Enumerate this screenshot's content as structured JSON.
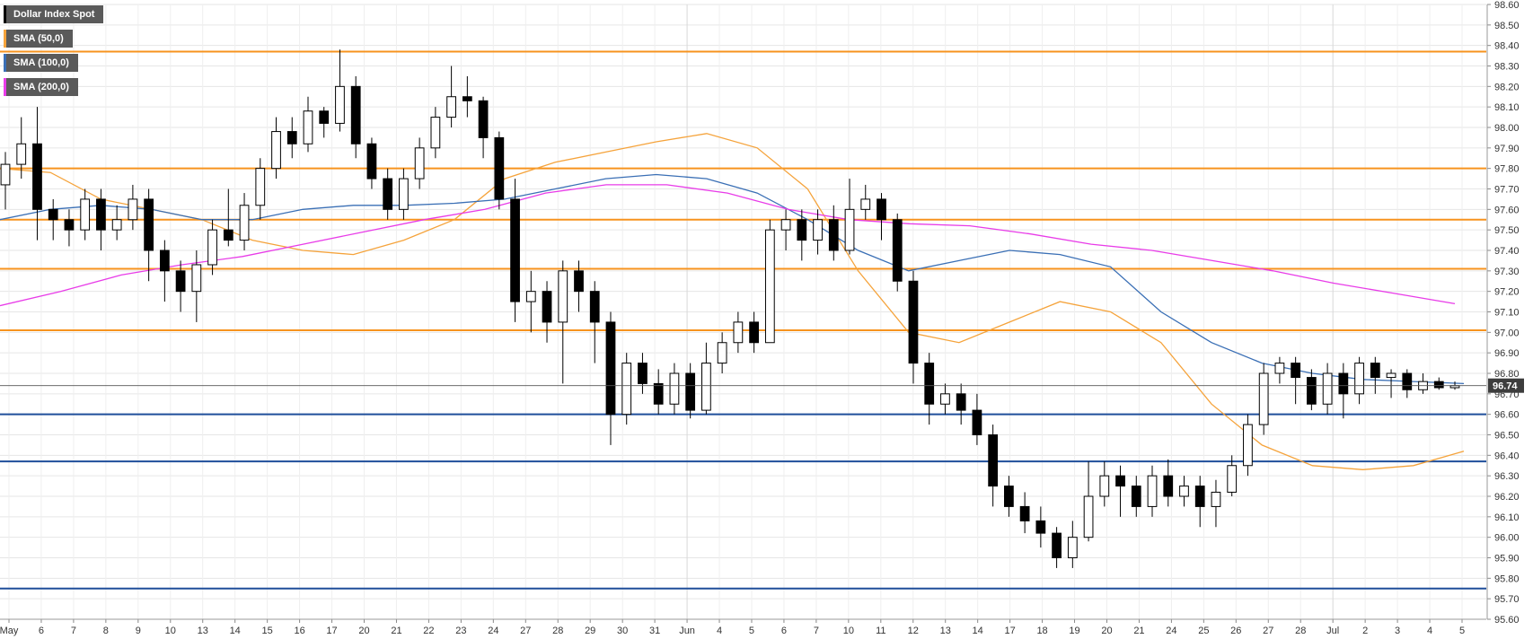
{
  "legend": {
    "instrument": "Dollar Index Spot",
    "sma50": "SMA (50,0)",
    "sma100": "SMA (100,0)",
    "sma200": "SMA (200,0)"
  },
  "colors": {
    "up_candle": "#ffffff",
    "down_candle": "#000000",
    "sma50": "#f5a33b",
    "sma100": "#3a6fb5",
    "sma200": "#e83ce8",
    "resistance": "#f7931e",
    "support": "#1f4e9a",
    "grid": "#e6e6e6",
    "last_price_bg": "#3d3d3d"
  },
  "chart_data": {
    "type": "candlestick",
    "title": "Dollar Index Spot",
    "ylim": [
      95.6,
      98.6
    ],
    "y_ticks": [
      "98.60",
      "98.50",
      "98.40",
      "98.30",
      "98.20",
      "98.10",
      "98.00",
      "97.90",
      "97.80",
      "97.70",
      "97.60",
      "97.50",
      "97.40",
      "97.30",
      "97.20",
      "97.10",
      "97.00",
      "96.90",
      "96.80",
      "96.70",
      "96.60",
      "96.50",
      "96.40",
      "96.30",
      "96.20",
      "96.10",
      "96.00",
      "95.90",
      "95.80",
      "95.70",
      "95.60"
    ],
    "x_ticks": [
      "May",
      "6",
      "7",
      "8",
      "9",
      "10",
      "13",
      "14",
      "15",
      "16",
      "17",
      "20",
      "21",
      "22",
      "23",
      "24",
      "27",
      "28",
      "29",
      "30",
      "31",
      "Jun",
      "4",
      "5",
      "6",
      "7",
      "10",
      "11",
      "12",
      "13",
      "14",
      "17",
      "18",
      "19",
      "20",
      "21",
      "24",
      "25",
      "26",
      "27",
      "28",
      "Jul",
      "2",
      "3",
      "4",
      "5"
    ],
    "last_price": "96.74",
    "resistance_levels": [
      98.37,
      97.8,
      97.55,
      97.31,
      97.01
    ],
    "support_levels": [
      96.6,
      96.37,
      95.75
    ],
    "series": [
      {
        "name": "SMA (50,0)",
        "values": [
          97.8,
          97.78,
          97.65,
          97.6,
          97.55,
          97.45,
          97.4,
          97.38,
          97.45,
          97.55,
          97.75,
          97.83,
          97.88,
          97.93,
          97.97,
          97.9,
          97.7,
          97.3,
          97.0,
          96.95,
          97.05,
          97.15,
          97.1,
          96.95,
          96.65,
          96.45,
          96.35,
          96.33,
          96.35,
          96.42
        ]
      },
      {
        "name": "SMA (100,0)",
        "values": [
          97.55,
          97.6,
          97.62,
          97.6,
          97.55,
          97.55,
          97.6,
          97.62,
          97.62,
          97.63,
          97.65,
          97.7,
          97.75,
          97.77,
          97.75,
          97.68,
          97.55,
          97.4,
          97.3,
          97.35,
          97.4,
          97.38,
          97.32,
          97.1,
          96.95,
          96.85,
          96.8,
          96.77,
          96.76,
          96.75
        ]
      },
      {
        "name": "SMA (200,0)",
        "values": [
          97.13,
          97.2,
          97.28,
          97.33,
          97.37,
          97.43,
          97.49,
          97.55,
          97.6,
          97.68,
          97.72,
          97.72,
          97.68,
          97.6,
          97.55,
          97.53,
          97.52,
          97.48,
          97.43,
          97.4,
          97.35,
          97.3,
          97.24,
          97.19,
          97.14
        ]
      }
    ],
    "candles": [
      {
        "o": 97.72,
        "c": 97.82,
        "h": 97.88,
        "l": 97.6
      },
      {
        "o": 97.82,
        "c": 97.92,
        "h": 98.05,
        "l": 97.75
      },
      {
        "o": 97.92,
        "c": 97.6,
        "h": 98.1,
        "l": 97.45
      },
      {
        "o": 97.6,
        "c": 97.55,
        "h": 97.65,
        "l": 97.45
      },
      {
        "o": 97.55,
        "c": 97.5,
        "h": 97.6,
        "l": 97.42
      },
      {
        "o": 97.5,
        "c": 97.65,
        "h": 97.7,
        "l": 97.45
      },
      {
        "o": 97.65,
        "c": 97.5,
        "h": 97.7,
        "l": 97.4
      },
      {
        "o": 97.5,
        "c": 97.55,
        "h": 97.62,
        "l": 97.45
      },
      {
        "o": 97.55,
        "c": 97.65,
        "h": 97.72,
        "l": 97.5
      },
      {
        "o": 97.65,
        "c": 97.4,
        "h": 97.7,
        "l": 97.25
      },
      {
        "o": 97.4,
        "c": 97.3,
        "h": 97.45,
        "l": 97.15
      },
      {
        "o": 97.3,
        "c": 97.2,
        "h": 97.35,
        "l": 97.1
      },
      {
        "o": 97.2,
        "c": 97.33,
        "h": 97.4,
        "l": 97.05
      },
      {
        "o": 97.33,
        "c": 97.5,
        "h": 97.55,
        "l": 97.28
      },
      {
        "o": 97.5,
        "c": 97.45,
        "h": 97.7,
        "l": 97.42
      },
      {
        "o": 97.45,
        "c": 97.62,
        "h": 97.68,
        "l": 97.4
      },
      {
        "o": 97.62,
        "c": 97.8,
        "h": 97.85,
        "l": 97.55
      },
      {
        "o": 97.8,
        "c": 97.98,
        "h": 98.05,
        "l": 97.75
      },
      {
        "o": 97.98,
        "c": 97.92,
        "h": 98.05,
        "l": 97.85
      },
      {
        "o": 97.92,
        "c": 98.08,
        "h": 98.15,
        "l": 97.88
      },
      {
        "o": 98.08,
        "c": 98.02,
        "h": 98.1,
        "l": 97.95
      },
      {
        "o": 98.02,
        "c": 98.2,
        "h": 98.38,
        "l": 97.98
      },
      {
        "o": 98.2,
        "c": 97.92,
        "h": 98.25,
        "l": 97.85
      },
      {
        "o": 97.92,
        "c": 97.75,
        "h": 97.95,
        "l": 97.7
      },
      {
        "o": 97.75,
        "c": 97.6,
        "h": 97.8,
        "l": 97.55
      },
      {
        "o": 97.6,
        "c": 97.75,
        "h": 97.8,
        "l": 97.55
      },
      {
        "o": 97.75,
        "c": 97.9,
        "h": 97.95,
        "l": 97.7
      },
      {
        "o": 97.9,
        "c": 98.05,
        "h": 98.1,
        "l": 97.85
      },
      {
        "o": 98.05,
        "c": 98.15,
        "h": 98.3,
        "l": 98.0
      },
      {
        "o": 98.15,
        "c": 98.13,
        "h": 98.25,
        "l": 98.05
      },
      {
        "o": 98.13,
        "c": 97.95,
        "h": 98.15,
        "l": 97.85
      },
      {
        "o": 97.95,
        "c": 97.65,
        "h": 97.98,
        "l": 97.6
      },
      {
        "o": 97.65,
        "c": 97.15,
        "h": 97.75,
        "l": 97.05
      },
      {
        "o": 97.15,
        "c": 97.2,
        "h": 97.3,
        "l": 97.0
      },
      {
        "o": 97.2,
        "c": 97.05,
        "h": 97.25,
        "l": 96.95
      },
      {
        "o": 97.05,
        "c": 97.3,
        "h": 97.35,
        "l": 96.75
      },
      {
        "o": 97.3,
        "c": 97.2,
        "h": 97.35,
        "l": 97.1
      },
      {
        "o": 97.2,
        "c": 97.05,
        "h": 97.25,
        "l": 96.85
      },
      {
        "o": 97.05,
        "c": 96.6,
        "h": 97.1,
        "l": 96.45
      },
      {
        "o": 96.6,
        "c": 96.85,
        "h": 96.9,
        "l": 96.55
      },
      {
        "o": 96.85,
        "c": 96.75,
        "h": 96.9,
        "l": 96.7
      },
      {
        "o": 96.75,
        "c": 96.65,
        "h": 96.82,
        "l": 96.6
      },
      {
        "o": 96.65,
        "c": 96.8,
        "h": 96.85,
        "l": 96.6
      },
      {
        "o": 96.8,
        "c": 96.62,
        "h": 96.85,
        "l": 96.58
      },
      {
        "o": 96.62,
        "c": 96.85,
        "h": 96.95,
        "l": 96.6
      },
      {
        "o": 96.85,
        "c": 96.95,
        "h": 97.0,
        "l": 96.8
      },
      {
        "o": 96.95,
        "c": 97.05,
        "h": 97.1,
        "l": 96.9
      },
      {
        "o": 97.05,
        "c": 96.95,
        "h": 97.1,
        "l": 96.9
      },
      {
        "o": 96.95,
        "c": 97.5,
        "h": 97.55,
        "l": 96.95
      },
      {
        "o": 97.5,
        "c": 97.55,
        "h": 97.6,
        "l": 97.4
      },
      {
        "o": 97.55,
        "c": 97.45,
        "h": 97.6,
        "l": 97.35
      },
      {
        "o": 97.45,
        "c": 97.55,
        "h": 97.6,
        "l": 97.38
      },
      {
        "o": 97.55,
        "c": 97.4,
        "h": 97.62,
        "l": 97.35
      },
      {
        "o": 97.4,
        "c": 97.6,
        "h": 97.75,
        "l": 97.38
      },
      {
        "o": 97.6,
        "c": 97.65,
        "h": 97.72,
        "l": 97.55
      },
      {
        "o": 97.65,
        "c": 97.55,
        "h": 97.68,
        "l": 97.45
      },
      {
        "o": 97.55,
        "c": 97.25,
        "h": 97.58,
        "l": 97.2
      },
      {
        "o": 97.25,
        "c": 96.85,
        "h": 97.3,
        "l": 96.75
      },
      {
        "o": 96.85,
        "c": 96.65,
        "h": 96.9,
        "l": 96.55
      },
      {
        "o": 96.65,
        "c": 96.7,
        "h": 96.75,
        "l": 96.6
      },
      {
        "o": 96.7,
        "c": 96.62,
        "h": 96.75,
        "l": 96.55
      },
      {
        "o": 96.62,
        "c": 96.5,
        "h": 96.7,
        "l": 96.45
      },
      {
        "o": 96.5,
        "c": 96.25,
        "h": 96.55,
        "l": 96.15
      },
      {
        "o": 96.25,
        "c": 96.15,
        "h": 96.3,
        "l": 96.1
      },
      {
        "o": 96.15,
        "c": 96.08,
        "h": 96.22,
        "l": 96.02
      },
      {
        "o": 96.08,
        "c": 96.02,
        "h": 96.15,
        "l": 95.95
      },
      {
        "o": 96.02,
        "c": 95.9,
        "h": 96.05,
        "l": 95.85
      },
      {
        "o": 95.9,
        "c": 96.0,
        "h": 96.08,
        "l": 95.85
      },
      {
        "o": 96.0,
        "c": 96.2,
        "h": 96.37,
        "l": 95.98
      },
      {
        "o": 96.2,
        "c": 96.3,
        "h": 96.37,
        "l": 96.15
      },
      {
        "o": 96.3,
        "c": 96.25,
        "h": 96.35,
        "l": 96.1
      },
      {
        "o": 96.25,
        "c": 96.15,
        "h": 96.3,
        "l": 96.1
      },
      {
        "o": 96.15,
        "c": 96.3,
        "h": 96.35,
        "l": 96.1
      },
      {
        "o": 96.3,
        "c": 96.2,
        "h": 96.38,
        "l": 96.15
      },
      {
        "o": 96.2,
        "c": 96.25,
        "h": 96.3,
        "l": 96.15
      },
      {
        "o": 96.25,
        "c": 96.15,
        "h": 96.3,
        "l": 96.05
      },
      {
        "o": 96.15,
        "c": 96.22,
        "h": 96.28,
        "l": 96.05
      },
      {
        "o": 96.22,
        "c": 96.35,
        "h": 96.4,
        "l": 96.2
      },
      {
        "o": 96.35,
        "c": 96.55,
        "h": 96.6,
        "l": 96.3
      },
      {
        "o": 96.55,
        "c": 96.8,
        "h": 96.85,
        "l": 96.5
      },
      {
        "o": 96.8,
        "c": 96.85,
        "h": 96.88,
        "l": 96.75
      },
      {
        "o": 96.85,
        "c": 96.78,
        "h": 96.88,
        "l": 96.65
      },
      {
        "o": 96.78,
        "c": 96.65,
        "h": 96.82,
        "l": 96.62
      },
      {
        "o": 96.65,
        "c": 96.8,
        "h": 96.85,
        "l": 96.6
      },
      {
        "o": 96.8,
        "c": 96.7,
        "h": 96.85,
        "l": 96.58
      },
      {
        "o": 96.7,
        "c": 96.85,
        "h": 96.88,
        "l": 96.65
      },
      {
        "o": 96.85,
        "c": 96.78,
        "h": 96.88,
        "l": 96.7
      },
      {
        "o": 96.78,
        "c": 96.8,
        "h": 96.82,
        "l": 96.68
      },
      {
        "o": 96.8,
        "c": 96.72,
        "h": 96.82,
        "l": 96.68
      },
      {
        "o": 96.72,
        "c": 96.76,
        "h": 96.8,
        "l": 96.7
      },
      {
        "o": 96.76,
        "c": 96.73,
        "h": 96.78,
        "l": 96.72
      },
      {
        "o": 96.73,
        "c": 96.74,
        "h": 96.76,
        "l": 96.72
      }
    ]
  }
}
